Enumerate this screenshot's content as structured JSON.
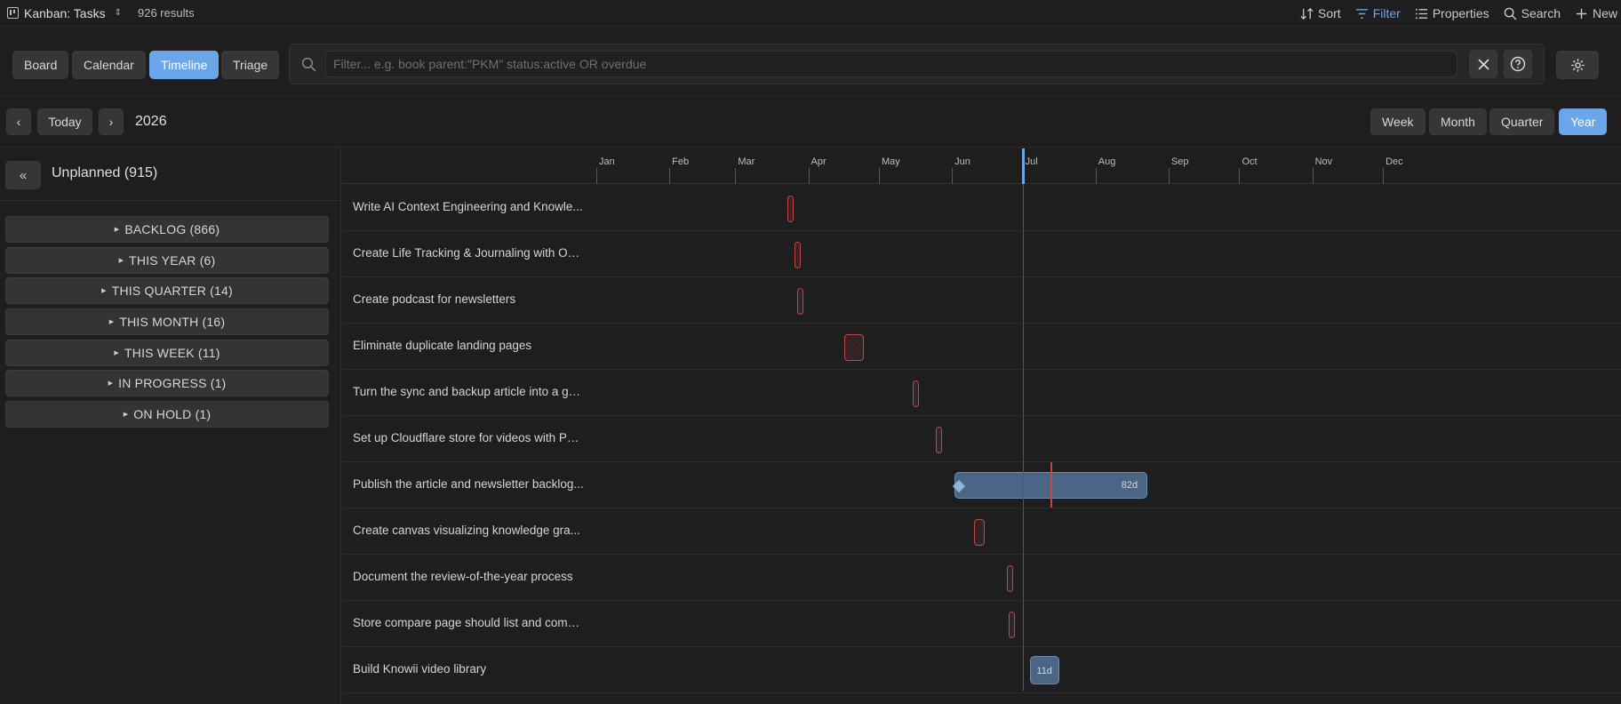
{
  "topbar": {
    "view_name": "Kanban: Tasks",
    "results": "926 results",
    "actions": [
      {
        "label": "Sort",
        "icon": "sort-icon",
        "active": false
      },
      {
        "label": "Filter",
        "icon": "filter-icon",
        "active": true
      },
      {
        "label": "Properties",
        "icon": "list-icon",
        "active": false
      },
      {
        "label": "Search",
        "icon": "search-icon",
        "active": false
      },
      {
        "label": "New",
        "icon": "plus-icon",
        "active": false
      }
    ]
  },
  "toolbar": {
    "views": [
      {
        "label": "Board",
        "active": false
      },
      {
        "label": "Calendar",
        "active": false
      },
      {
        "label": "Timeline",
        "active": true
      },
      {
        "label": "Triage",
        "active": false
      }
    ],
    "filter_placeholder": "Filter... e.g. book parent:\"PKM\" status:active OR overdue",
    "filter_value": ""
  },
  "nav": {
    "prev_label": "‹",
    "today_label": "Today",
    "next_label": "›",
    "year": "2026",
    "ranges": [
      {
        "label": "Week",
        "active": false
      },
      {
        "label": "Month",
        "active": false
      },
      {
        "label": "Quarter",
        "active": false
      },
      {
        "label": "Year",
        "active": true
      }
    ]
  },
  "sidebar": {
    "collapse_label": "«",
    "unplanned_label": "Unplanned (915)",
    "groups": [
      {
        "label": "BACKLOG (866)"
      },
      {
        "label": "THIS YEAR (6)"
      },
      {
        "label": "THIS QUARTER (14)"
      },
      {
        "label": "THIS MONTH (16)"
      },
      {
        "label": "THIS WEEK (11)"
      },
      {
        "label": "IN PROGRESS (1)"
      },
      {
        "label": "ON HOLD (1)"
      }
    ]
  },
  "timeline": {
    "months": [
      "Jan",
      "Feb",
      "Mar",
      "Apr",
      "May",
      "Jun",
      "Jul",
      "Aug",
      "Sep",
      "Oct",
      "Nov",
      "Dec"
    ],
    "today": "2026-07-01",
    "tasks": [
      {
        "title": "Write AI Context Engineering and Knowle...",
        "kind": "overdue",
        "start": "2026-03-24",
        "days": 1
      },
      {
        "title": "Create Life Tracking & Journaling with Ob...",
        "kind": "overdue",
        "start": "2026-03-27",
        "days": 1
      },
      {
        "title": "Create podcast for newsletters",
        "kind": "overdue",
        "start": "2026-03-28",
        "days": 1
      },
      {
        "title": "Eliminate duplicate landing pages",
        "kind": "overdue",
        "start": "2026-04-17",
        "days": 7
      },
      {
        "title": "Turn the sync and backup article into a ga...",
        "kind": "overdue",
        "start": "2026-05-16",
        "days": 1
      },
      {
        "title": "Set up Cloudflare store for videos with PC...",
        "kind": "overdue",
        "start": "2026-05-26",
        "days": 1
      },
      {
        "title": "Publish the article and newsletter backlog...",
        "kind": "scheduled",
        "start": "2026-06-02",
        "days": 82,
        "duration_label": "82d",
        "marker": "2026-07-13"
      },
      {
        "title": "Create canvas visualizing knowledge gra...",
        "kind": "overdue",
        "start": "2026-06-11",
        "days": 3
      },
      {
        "title": "Document the review-of-the-year process",
        "kind": "overdue",
        "start": "2026-06-25",
        "days": 1
      },
      {
        "title": "Store compare page should list and comp...",
        "kind": "overdue",
        "start": "2026-06-26",
        "days": 1
      },
      {
        "title": "Build Knowii video library",
        "kind": "scheduled_small",
        "start": "2026-07-04",
        "days": 11,
        "duration_label": "11d"
      }
    ]
  },
  "colors": {
    "accent": "#6aa6e8",
    "overdue": "#c24848",
    "bar": "#4b6584"
  }
}
